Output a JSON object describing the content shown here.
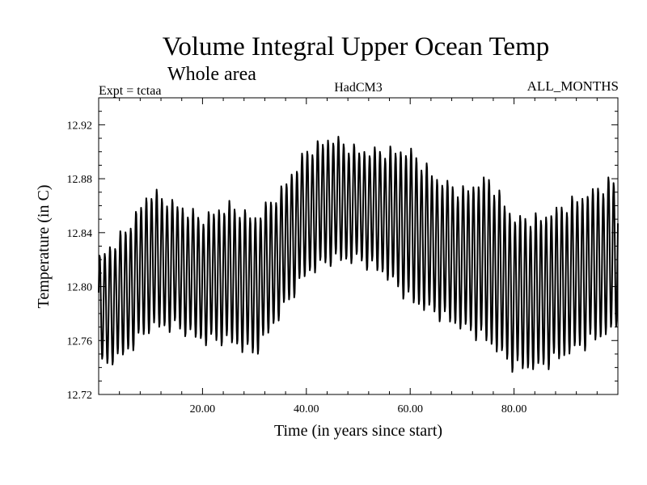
{
  "chart_data": {
    "type": "line",
    "title": "Volume Integral Upper Ocean Temp",
    "subtitle": "Whole area",
    "annotations": {
      "left": "Expt = tctaa",
      "center": "HadCM3",
      "right": "ALL_MONTHS"
    },
    "xlabel": "Time (in years since start)",
    "ylabel": "Temperature (in C)",
    "xlim": [
      0,
      100
    ],
    "ylim": [
      12.72,
      12.94
    ],
    "xticks": [
      20,
      40,
      60,
      80
    ],
    "xtick_labels": [
      "20.00",
      "40.00",
      "60.00",
      "80.00"
    ],
    "yticks": [
      12.72,
      12.76,
      12.8,
      12.84,
      12.88,
      12.92
    ],
    "ytick_labels": [
      "12.72",
      "12.76",
      "12.80",
      "12.84",
      "12.88",
      "12.92"
    ],
    "grid": false,
    "series": [
      {
        "color": "#000000",
        "annual_cycle": "seasonal oscillation, period 1 year (monthly sampled)",
        "x": [
          0,
          5,
          10,
          15,
          20,
          25,
          30,
          35,
          40,
          45,
          50,
          55,
          60,
          65,
          70,
          75,
          80,
          85,
          90,
          95,
          100
        ],
        "y_max": [
          12.82,
          12.84,
          12.87,
          12.86,
          12.85,
          12.86,
          12.85,
          12.87,
          12.9,
          12.91,
          12.9,
          12.9,
          12.9,
          12.88,
          12.87,
          12.88,
          12.85,
          12.85,
          12.86,
          12.87,
          12.88
        ],
        "y_min": [
          12.74,
          12.75,
          12.77,
          12.77,
          12.76,
          12.76,
          12.75,
          12.78,
          12.81,
          12.82,
          12.82,
          12.81,
          12.79,
          12.78,
          12.77,
          12.76,
          12.74,
          12.74,
          12.75,
          12.76,
          12.77
        ]
      }
    ]
  }
}
